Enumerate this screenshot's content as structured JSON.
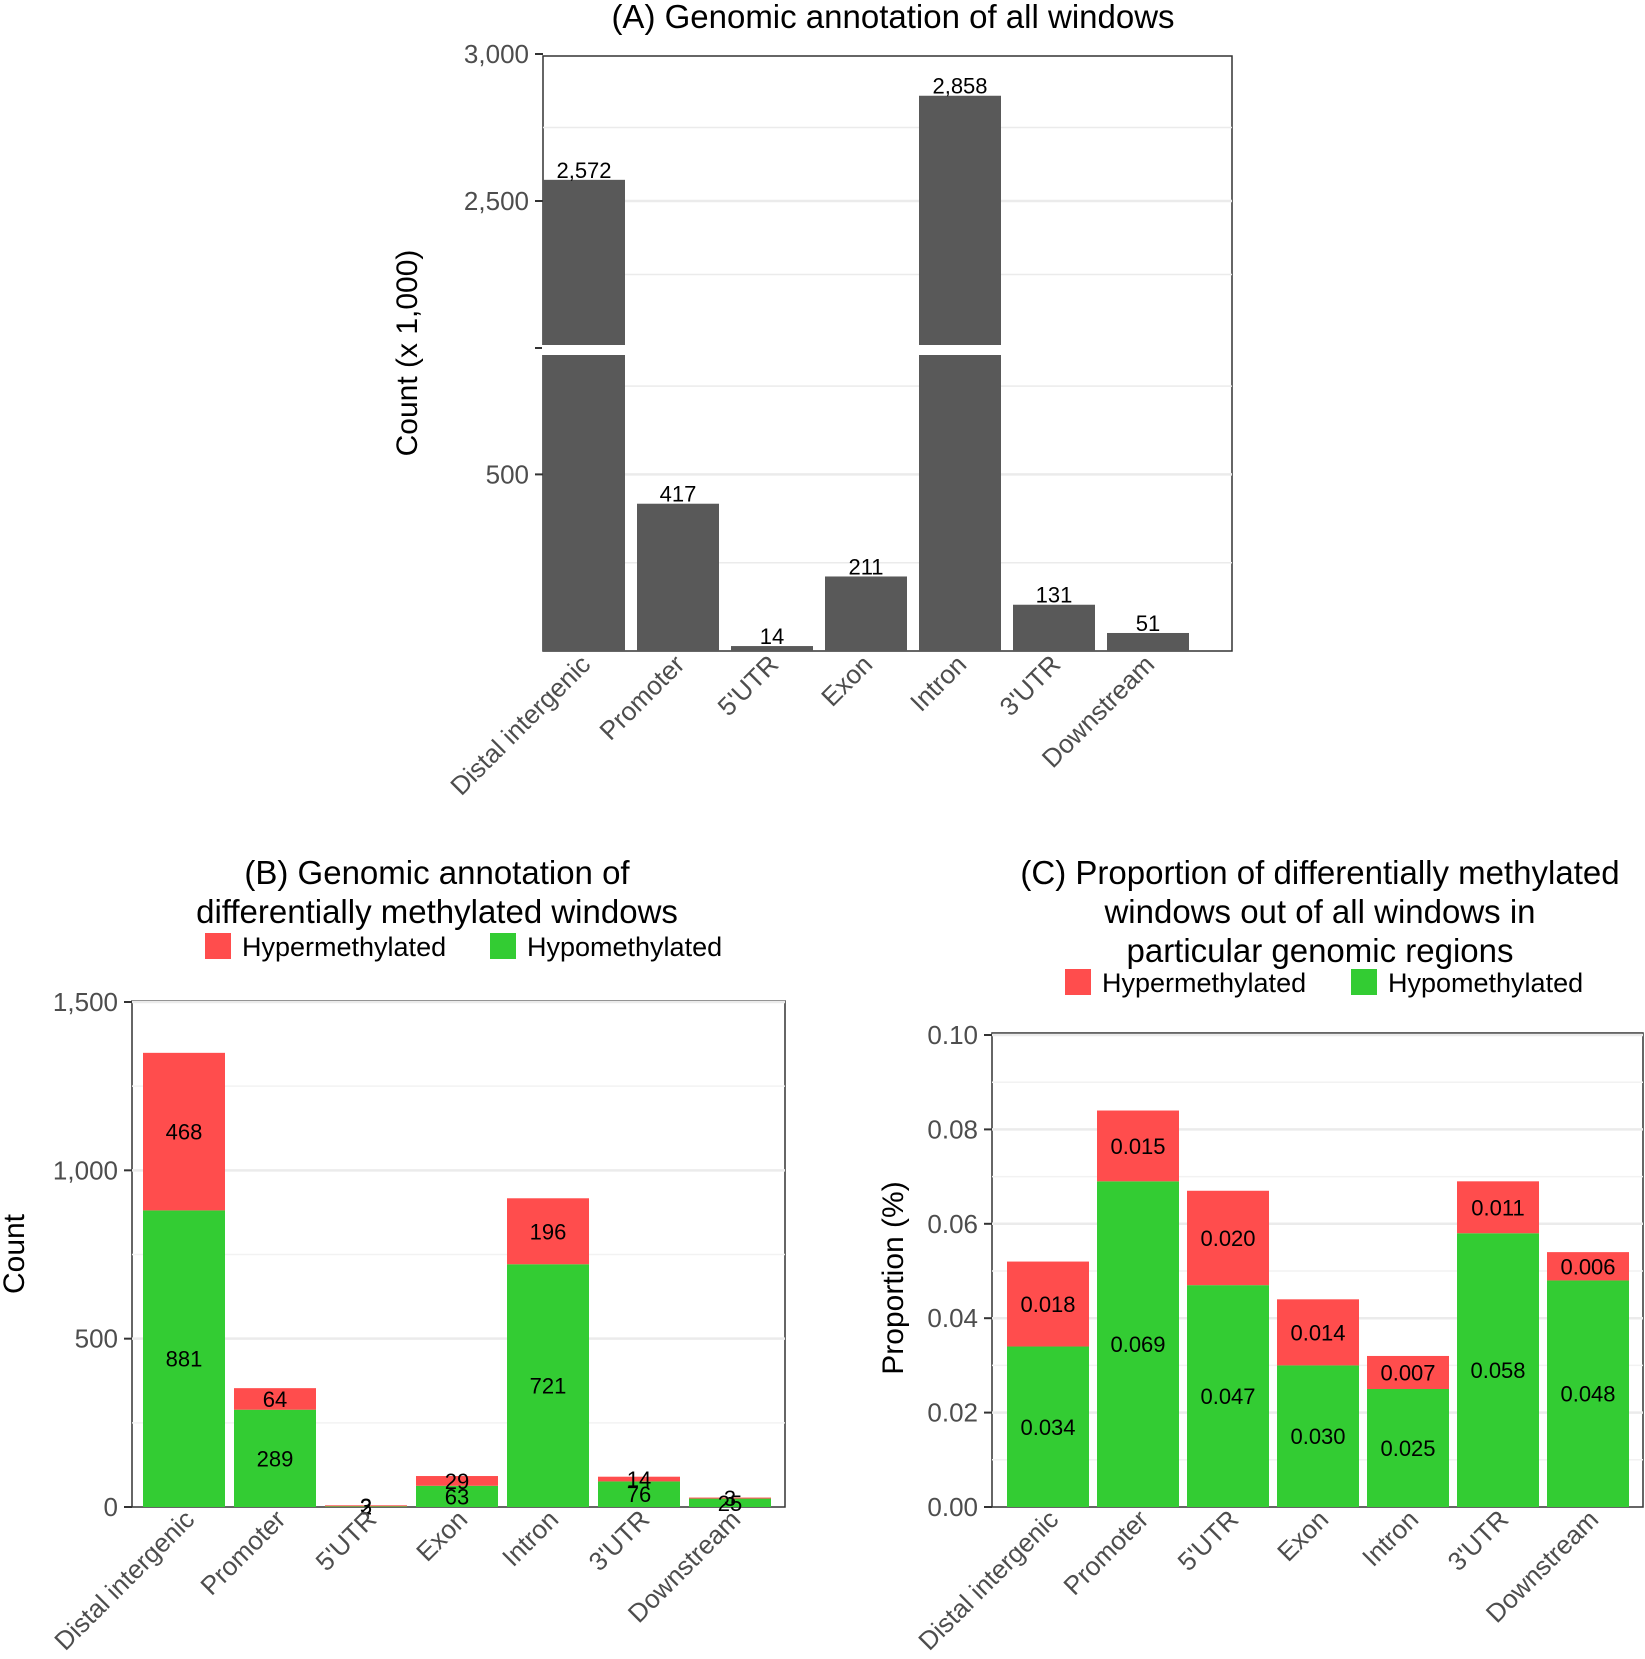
{
  "chart_data": [
    {
      "type": "bar",
      "title": "(A) Genomic annotation of all windows",
      "xlabel": "",
      "ylabel": "Count (x 1,000)",
      "axis_break": true,
      "yticks": [
        "500",
        "2,500",
        "3,000"
      ],
      "categories": [
        "Distal intergenic",
        "Promoter",
        "5'UTR",
        "Exon",
        "Intron",
        "3'UTR",
        "Downstream"
      ],
      "values": [
        2572,
        417,
        14,
        211,
        2858,
        131,
        51
      ],
      "value_labels": [
        "2,572",
        "417",
        "14",
        "211",
        "2,858",
        "131",
        "51"
      ],
      "colors": {
        "bar": "#595959"
      }
    },
    {
      "type": "bar",
      "stacked": true,
      "title_lines": [
        "(B) Genomic annotation of",
        "differentially methylated windows"
      ],
      "xlabel": "",
      "ylabel": "Count",
      "ylim": [
        0,
        1500
      ],
      "yticks": [
        0,
        500,
        1000,
        1500
      ],
      "ytick_labels": [
        "0",
        "500",
        "1,000",
        "1,500"
      ],
      "categories": [
        "Distal intergenic",
        "Promoter",
        "5'UTR",
        "Exon",
        "Intron",
        "3'UTR",
        "Downstream"
      ],
      "series": [
        {
          "name": "Hypomethylated",
          "color": "#33cc33",
          "values": [
            881,
            289,
            2,
            63,
            721,
            76,
            25
          ],
          "labels": [
            "881",
            "289",
            "2",
            "63",
            "721",
            "76",
            "25"
          ]
        },
        {
          "name": "Hypermethylated",
          "color": "#ff4d4d",
          "values": [
            468,
            64,
            3,
            29,
            196,
            14,
            3
          ],
          "labels": [
            "468",
            "64",
            "3",
            "29",
            "196",
            "14",
            "3"
          ]
        }
      ],
      "legend": [
        "Hypermethylated",
        "Hypomethylated"
      ],
      "legend_position": "top"
    },
    {
      "type": "bar",
      "stacked": true,
      "title_lines": [
        "(C) Proportion of differentially methylated",
        "windows out of all windows in",
        "particular genomic regions"
      ],
      "xlabel": "",
      "ylabel": "Proportion (%)",
      "ylim": [
        0,
        0.1
      ],
      "yticks": [
        0,
        0.02,
        0.04,
        0.06,
        0.08,
        0.1
      ],
      "ytick_labels": [
        "0.00",
        "0.02",
        "0.04",
        "0.06",
        "0.08",
        "0.10"
      ],
      "categories": [
        "Distal intergenic",
        "Promoter",
        "5'UTR",
        "Exon",
        "Intron",
        "3'UTR",
        "Downstream"
      ],
      "series": [
        {
          "name": "Hypomethylated",
          "color": "#33cc33",
          "values": [
            0.034,
            0.069,
            0.047,
            0.03,
            0.025,
            0.058,
            0.048
          ],
          "labels": [
            "0.034",
            "0.069",
            "0.047",
            "0.030",
            "0.025",
            "0.058",
            "0.048"
          ]
        },
        {
          "name": "Hypermethylated",
          "color": "#ff4d4d",
          "values": [
            0.018,
            0.015,
            0.02,
            0.014,
            0.007,
            0.011,
            0.006
          ],
          "labels": [
            "0.018",
            "0.015",
            "0.020",
            "0.014",
            "0.007",
            "0.011",
            "0.006"
          ]
        }
      ],
      "legend": [
        "Hypermethylated",
        "Hypomethylated"
      ],
      "legend_position": "top"
    }
  ]
}
